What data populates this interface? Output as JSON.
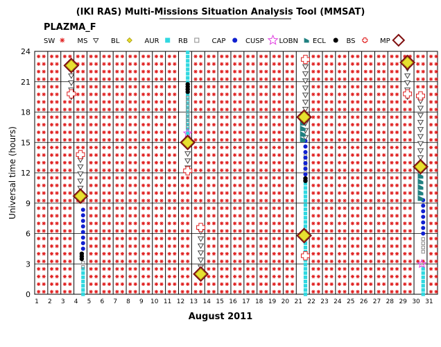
{
  "chart_data": {
    "type": "scatter",
    "title": "(IKI RAS) Multi-Missions Situation Analysis Tool (MMSAT)",
    "mission": "PLAZMA_F",
    "xlabel": "August 2011",
    "ylabel": "Universal time (hours)",
    "xlim": [
      1,
      31.8
    ],
    "ylim": [
      0,
      24
    ],
    "x_ticks": [
      1,
      2,
      3,
      4,
      5,
      6,
      7,
      8,
      9,
      10,
      11,
      12,
      13,
      14,
      15,
      16,
      17,
      18,
      19,
      20,
      21,
      22,
      23,
      24,
      25,
      26,
      27,
      28,
      29,
      30,
      31
    ],
    "y_ticks": [
      0,
      3,
      6,
      9,
      12,
      15,
      18,
      21,
      24
    ],
    "grid": true,
    "legend": {
      "placement": "top",
      "entries": [
        {
          "label": "SW",
          "marker": "asterisk",
          "color": "#e02020"
        },
        {
          "label": "MS",
          "marker": "triangle-down",
          "color": "#444444"
        },
        {
          "label": "BL",
          "marker": "diamond",
          "color": "#e8e030"
        },
        {
          "label": "AUR",
          "marker": "square",
          "color": "#30d8e0"
        },
        {
          "label": "RB",
          "marker": "square-open",
          "color": "#888888"
        },
        {
          "label": "CAP",
          "marker": "circle",
          "color": "#1020d0"
        },
        {
          "label": "CUSP",
          "marker": "star",
          "color": "#e040e0"
        },
        {
          "label": "LOBN",
          "marker": "flag",
          "color": "#208080"
        },
        {
          "label": "ECL",
          "marker": "circle",
          "color": "#000000"
        },
        {
          "label": "BS",
          "marker": "cross",
          "color": "#e02020"
        },
        {
          "label": "MP",
          "marker": "diamond-open",
          "color": "#801010"
        }
      ]
    },
    "series": [
      {
        "name": "SW",
        "note": "solar wind on all days except the magnetosphere intervals below"
      },
      {
        "name": "MS",
        "segments": [
          [
            3.8,
            19.5,
            22.5
          ],
          [
            4.5,
            9.8,
            13.8
          ],
          [
            12.7,
            12.5,
            14.5
          ],
          [
            13.7,
            2.0,
            6.6
          ],
          [
            21.7,
            15.5,
            23.5
          ],
          [
            29.5,
            19.5,
            22.5
          ],
          [
            30.5,
            12.8,
            19.5
          ]
        ]
      },
      {
        "name": "AUR",
        "segments": [
          [
            4.7,
            0,
            2.7
          ],
          [
            12.7,
            15.5,
            24
          ],
          [
            21.7,
            0,
            11.0
          ],
          [
            30.7,
            0,
            2.8
          ]
        ]
      },
      {
        "name": "RB",
        "segments": [
          [
            4.7,
            2.7,
            3.5
          ],
          [
            12.7,
            16.5,
            19.5
          ],
          [
            21.7,
            12,
            14
          ],
          [
            30.7,
            4.2,
            5.8
          ]
        ]
      },
      {
        "name": "CAP",
        "segments": [
          [
            4.7,
            4.5,
            8.7
          ],
          [
            21.7,
            11.3,
            15.3
          ],
          [
            30.7,
            6.0,
            9.3
          ]
        ]
      },
      {
        "name": "ECL",
        "segments": [
          [
            4.6,
            3.5,
            4.1
          ],
          [
            12.7,
            20.0,
            20.8
          ],
          [
            21.7,
            11.2,
            11.6
          ]
        ]
      },
      {
        "name": "CUSP",
        "points": [
          [
            12.7,
            15.9
          ],
          [
            30.6,
            3.0
          ]
        ]
      },
      {
        "name": "LOBN",
        "segments": [
          [
            21.5,
            15.3,
            17.5
          ],
          [
            30.5,
            9.5,
            12.0
          ]
        ]
      },
      {
        "name": "BL",
        "points": [
          [
            3.8,
            22.6
          ],
          [
            4.5,
            9.7
          ],
          [
            12.7,
            15.0
          ],
          [
            13.7,
            2.0
          ],
          [
            21.6,
            17.5
          ],
          [
            21.6,
            5.8
          ],
          [
            29.5,
            22.9
          ],
          [
            30.5,
            12.6
          ]
        ]
      },
      {
        "name": "MP",
        "points": [
          [
            3.8,
            22.6
          ],
          [
            4.5,
            9.7
          ],
          [
            12.7,
            15.0
          ],
          [
            13.7,
            2.0
          ],
          [
            21.6,
            17.5
          ],
          [
            21.6,
            5.8
          ],
          [
            29.5,
            22.9
          ],
          [
            30.5,
            12.6
          ]
        ]
      },
      {
        "name": "BS",
        "points": [
          [
            3.8,
            19.8
          ],
          [
            4.5,
            13.8
          ],
          [
            12.7,
            12.2
          ],
          [
            13.7,
            6.6
          ],
          [
            21.7,
            3.8
          ],
          [
            21.7,
            23.2
          ],
          [
            29.5,
            19.8
          ],
          [
            30.5,
            19.6
          ]
        ]
      }
    ]
  }
}
